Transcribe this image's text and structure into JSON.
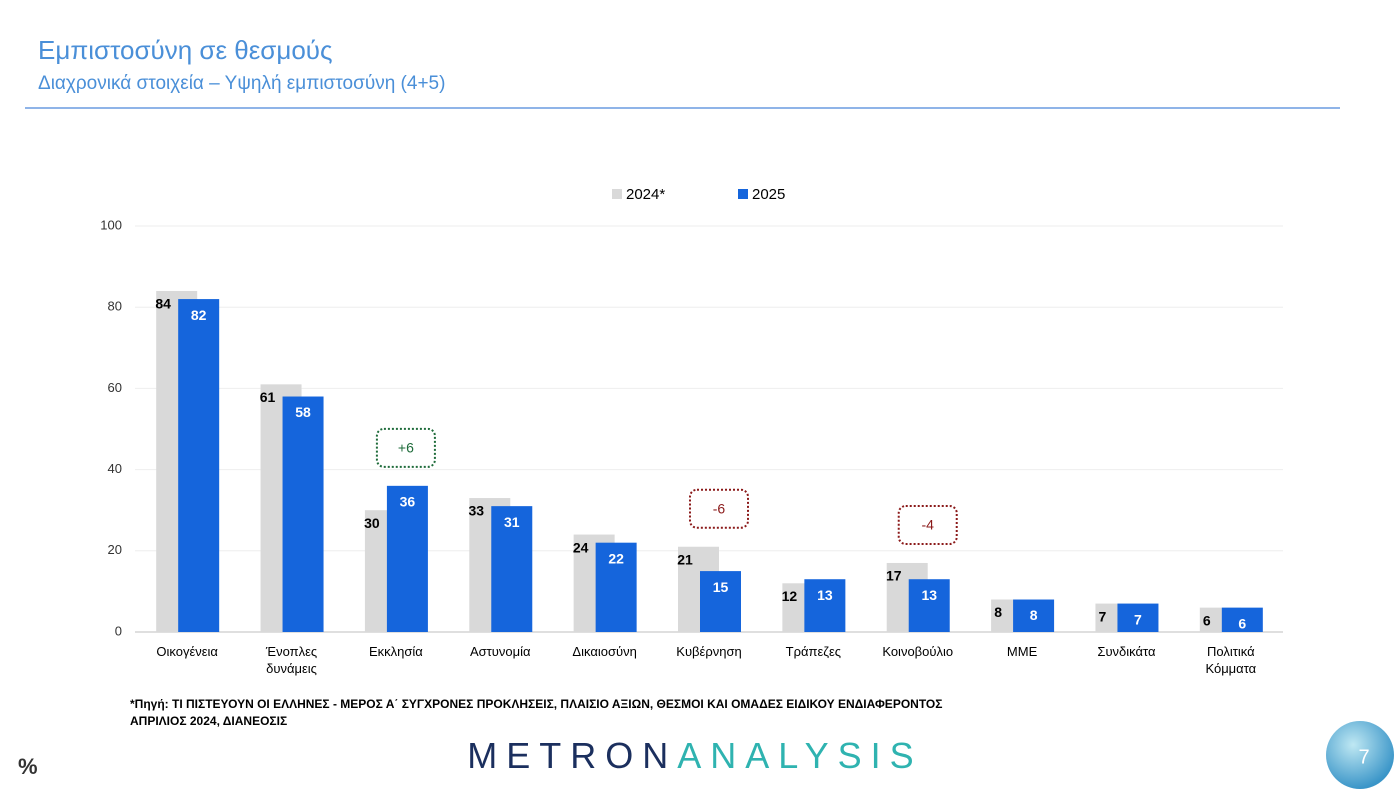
{
  "title": "Εμπιστοσύνη σε θεσμούς",
  "subtitle": "Διαχρονικά στοιχεία – Υψηλή εμπιστοσύνη (4+5)",
  "source": [
    "*Πηγή: ΤΙ ΠΙΣΤΕΥΟΥΝ ΟΙ ΕΛΛΗΝΕΣ - ΜΕΡΟΣ Α΄ ΣΥΓΧΡΟΝΕΣ ΠΡΟΚΛΗΣΕΙΣ, ΠΛΑΙΣΙΟ ΑΞΙΩΝ, ΘΕΣΜΟΙ ΚΑΙ ΟΜΑΔΕΣ ΕΙΔΙΚΟΥ ΕΝΔΙΑΦΕΡΟΝΤΟΣ",
    "ΑΠΡΙΛΙΟΣ 2024, ΔΙΑΝΕΟΣΙΣ"
  ],
  "unit": "%",
  "logo": {
    "part1": "METRON",
    "part2": "ANALYSIS"
  },
  "page_number": "7",
  "chart_data": {
    "type": "bar",
    "categories": [
      "Οικογένεια",
      "Ένοπλες δυνάμεις",
      "Εκκλησία",
      "Αστυνομία",
      "Δικαιοσύνη",
      "Κυβέρνηση",
      "Τράπεζες",
      "Κοινοβούλιο",
      "ΜΜΕ",
      "Συνδικάτα",
      "Πολιτικά Κόμματα"
    ],
    "series": [
      {
        "name": "2024*",
        "color": "#d9d9d9",
        "values": [
          84,
          61,
          30,
          33,
          24,
          21,
          12,
          17,
          8,
          7,
          6
        ]
      },
      {
        "name": "2025",
        "color": "#1565dc",
        "values": [
          82,
          58,
          36,
          31,
          22,
          15,
          13,
          13,
          8,
          7,
          6
        ]
      }
    ],
    "ylim": [
      0,
      100
    ],
    "yticks": [
      0,
      20,
      40,
      60,
      80,
      100
    ],
    "grid": true,
    "legend": "top",
    "annotations": [
      {
        "text": "+6",
        "category": "Εκκλησία",
        "color": "#1e6b3a"
      },
      {
        "text": "-6",
        "category": "Κυβέρνηση",
        "color": "#8b1a1a"
      },
      {
        "text": "-4",
        "category": "Κοινοβούλιο",
        "color": "#8b1a1a"
      }
    ]
  }
}
